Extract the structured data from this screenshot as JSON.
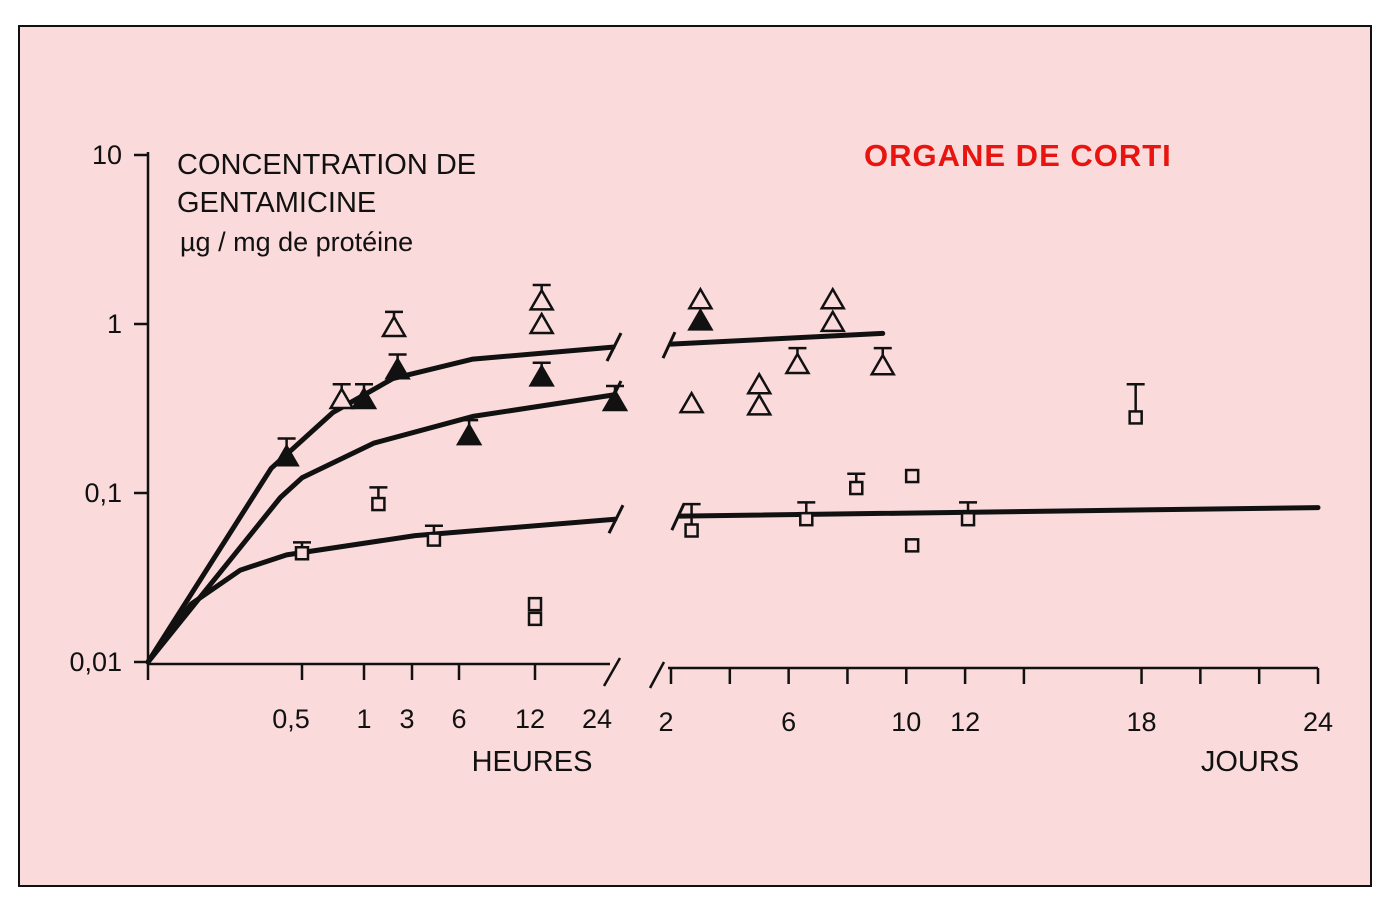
{
  "chart_data": {
    "type": "scatter",
    "title": "ORGANE DE CORTI",
    "title_color": "#e8140f",
    "background_color": "#fadada",
    "ylabel_lines": [
      "CONCENTRATION DE",
      "GENTAMICINE",
      "µg / mg  de protéine"
    ],
    "y_scale": "log",
    "ylim": [
      0.01,
      10
    ],
    "y_ticks": [
      {
        "value": 10,
        "label": "10"
      },
      {
        "value": 1,
        "label": "1"
      },
      {
        "value": 0.1,
        "label": "0,1"
      },
      {
        "value": 0.01,
        "label": "0,01"
      }
    ],
    "grid": false,
    "panels": [
      {
        "id": "hours",
        "xlabel": "HEURES",
        "x_ticks": [
          {
            "value": 0.5,
            "label": "0,5"
          },
          {
            "value": 1,
            "label": "1"
          },
          {
            "value": 3,
            "label": "3"
          },
          {
            "value": 6,
            "label": "6"
          },
          {
            "value": 12,
            "label": "12"
          },
          {
            "value": 24,
            "label": "24"
          }
        ],
        "points": [
          {
            "marker": "filled-triangle",
            "x": 0.45,
            "y": 0.165,
            "err_upper": 0.21
          },
          {
            "marker": "open-triangle",
            "x": 0.82,
            "y": 0.36,
            "err_upper": 0.44
          },
          {
            "marker": "filled-triangle",
            "x": 1,
            "y": 0.36,
            "err_upper": 0.44
          },
          {
            "marker": "open-triangle",
            "x": 2.25,
            "y": 0.96,
            "err_upper": 1.18
          },
          {
            "marker": "filled-triangle",
            "x": 2.4,
            "y": 0.54,
            "err_upper": 0.66
          },
          {
            "marker": "filled-triangle",
            "x": 6.8,
            "y": 0.22,
            "err_upper": 0.27
          },
          {
            "marker": "open-triangle",
            "x": 13,
            "y": 1.38,
            "err_upper": 1.7
          },
          {
            "marker": "open-triangle",
            "x": 13,
            "y": 1.0
          },
          {
            "marker": "filled-triangle",
            "x": 13,
            "y": 0.49,
            "err_upper": 0.59
          },
          {
            "marker": "filled-triangle",
            "x": 24,
            "y": 0.35,
            "err_upper": 0.43
          },
          {
            "marker": "open-square",
            "x": 0.5,
            "y": 0.044,
            "err_upper": 0.051
          },
          {
            "marker": "open-square",
            "x": 1.6,
            "y": 0.086,
            "err_upper": 0.108
          },
          {
            "marker": "open-square",
            "x": 4.4,
            "y": 0.053,
            "err_upper": 0.064
          },
          {
            "marker": "open-square",
            "x": 12,
            "y": 0.022
          },
          {
            "marker": "open-square",
            "x": 12,
            "y": 0.018
          }
        ],
        "curves": [
          {
            "x": [
              0,
              0.4,
              0.75,
              2.2,
              7.1,
              23.7
            ],
            "y": [
              0.01,
              0.14,
              0.3,
              0.475,
              0.62,
              0.73
            ]
          },
          {
            "x": [
              0,
              0.43,
              0.5,
              1.4,
              7.1,
              23.7
            ],
            "y": [
              0.01,
              0.094,
              0.123,
              0.197,
              0.284,
              0.38
            ]
          },
          {
            "x": [
              0,
              0.14,
              0.3,
              0.45,
              3.2,
              24
            ],
            "y": [
              0.01,
              0.022,
              0.035,
              0.043,
              0.056,
              0.07
            ]
          }
        ]
      },
      {
        "id": "days",
        "xlabel": "JOURS",
        "xlim": [
          2,
          24
        ],
        "x_ticks": [
          {
            "value": 2,
            "label": "2"
          },
          {
            "value": 4,
            "label": ""
          },
          {
            "value": 6,
            "label": "6"
          },
          {
            "value": 8,
            "label": ""
          },
          {
            "value": 10,
            "label": "10"
          },
          {
            "value": 12,
            "label": "12"
          },
          {
            "value": 14,
            "label": ""
          },
          {
            "value": 18,
            "label": "18"
          },
          {
            "value": 20,
            "label": ""
          },
          {
            "value": 22,
            "label": ""
          },
          {
            "value": 24,
            "label": "24"
          }
        ],
        "points": [
          {
            "marker": "open-triangle",
            "x": 3,
            "y": 1.4
          },
          {
            "marker": "filled-triangle",
            "x": 3,
            "y": 1.05
          },
          {
            "marker": "open-triangle",
            "x": 2.7,
            "y": 0.34
          },
          {
            "marker": "open-triangle",
            "x": 5.0,
            "y": 0.44
          },
          {
            "marker": "open-triangle",
            "x": 5.0,
            "y": 0.33
          },
          {
            "marker": "open-triangle",
            "x": 6.3,
            "y": 0.58,
            "err_upper": 0.72
          },
          {
            "marker": "open-triangle",
            "x": 7.5,
            "y": 1.4
          },
          {
            "marker": "open-triangle",
            "x": 7.5,
            "y": 1.03
          },
          {
            "marker": "open-triangle",
            "x": 9.2,
            "y": 0.57,
            "err_upper": 0.72
          },
          {
            "marker": "open-square",
            "x": 2.7,
            "y": 0.06,
            "err_upper": 0.086
          },
          {
            "marker": "open-square",
            "x": 6.6,
            "y": 0.07,
            "err_upper": 0.088
          },
          {
            "marker": "open-square",
            "x": 8.3,
            "y": 0.107,
            "err_upper": 0.13
          },
          {
            "marker": "open-square",
            "x": 10.2,
            "y": 0.126
          },
          {
            "marker": "open-square",
            "x": 10.2,
            "y": 0.049
          },
          {
            "marker": "open-square",
            "x": 12.1,
            "y": 0.07,
            "err_upper": 0.088
          },
          {
            "marker": "open-square",
            "x": 17.8,
            "y": 0.28,
            "err_upper": 0.44
          }
        ],
        "curves": [
          {
            "x": [
              2,
              9.2
            ],
            "y": [
              0.76,
              0.88
            ]
          },
          {
            "x": [
              2.3,
              24
            ],
            "y": [
              0.073,
              0.082
            ]
          }
        ]
      }
    ]
  }
}
